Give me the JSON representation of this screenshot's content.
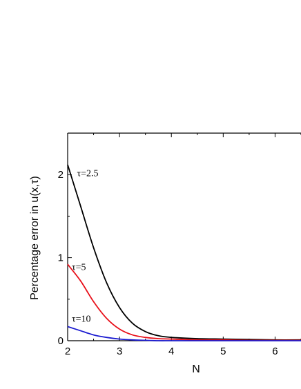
{
  "chart_data": {
    "type": "line",
    "title": "",
    "xlabel": "N",
    "ylabel": "Percentage error in u(x,τ)",
    "xlim": [
      2,
      6.5
    ],
    "ylim": [
      0,
      2.5
    ],
    "x_ticks": [
      2,
      3,
      4,
      5,
      6
    ],
    "y_ticks": [
      0,
      1,
      2
    ],
    "grid": false,
    "legend": "none",
    "series": [
      {
        "name": "τ=2.5",
        "color": "#000000",
        "x": [
          2.0,
          2.25,
          2.5,
          2.75,
          3.0,
          3.25,
          3.5,
          3.75,
          4.0,
          4.5,
          5.0,
          5.5,
          6.0,
          6.5
        ],
        "y": [
          2.12,
          1.62,
          1.12,
          0.7,
          0.4,
          0.21,
          0.11,
          0.06,
          0.04,
          0.025,
          0.02,
          0.015,
          0.01,
          0.01
        ]
      },
      {
        "name": "τ=5",
        "color": "#e8101a",
        "x": [
          2.0,
          2.25,
          2.5,
          2.75,
          3.0,
          3.25,
          3.5,
          3.75,
          4.0,
          4.5,
          5.0,
          5.5,
          6.0,
          6.5
        ],
        "y": [
          0.92,
          0.72,
          0.47,
          0.27,
          0.14,
          0.07,
          0.04,
          0.025,
          0.02,
          0.01,
          0.01,
          0.005,
          0.005,
          0.005
        ]
      },
      {
        "name": "τ=10",
        "color": "#1a1ad0",
        "x": [
          2.0,
          2.25,
          2.5,
          2.75,
          3.0,
          3.25,
          3.5,
          3.75,
          4.0,
          4.5,
          5.0,
          5.5,
          6.0,
          6.5
        ],
        "y": [
          0.17,
          0.12,
          0.07,
          0.04,
          0.02,
          0.01,
          0.005,
          0.0,
          0.0,
          0.0,
          0.0,
          0.0,
          0.0,
          0.0
        ]
      }
    ],
    "annotations": [
      {
        "text": "τ=2.5",
        "x": 2.18,
        "y": 1.98
      },
      {
        "text": "τ=5",
        "x": 2.08,
        "y": 0.85
      },
      {
        "text": "τ=10",
        "x": 2.08,
        "y": 0.23
      }
    ]
  }
}
